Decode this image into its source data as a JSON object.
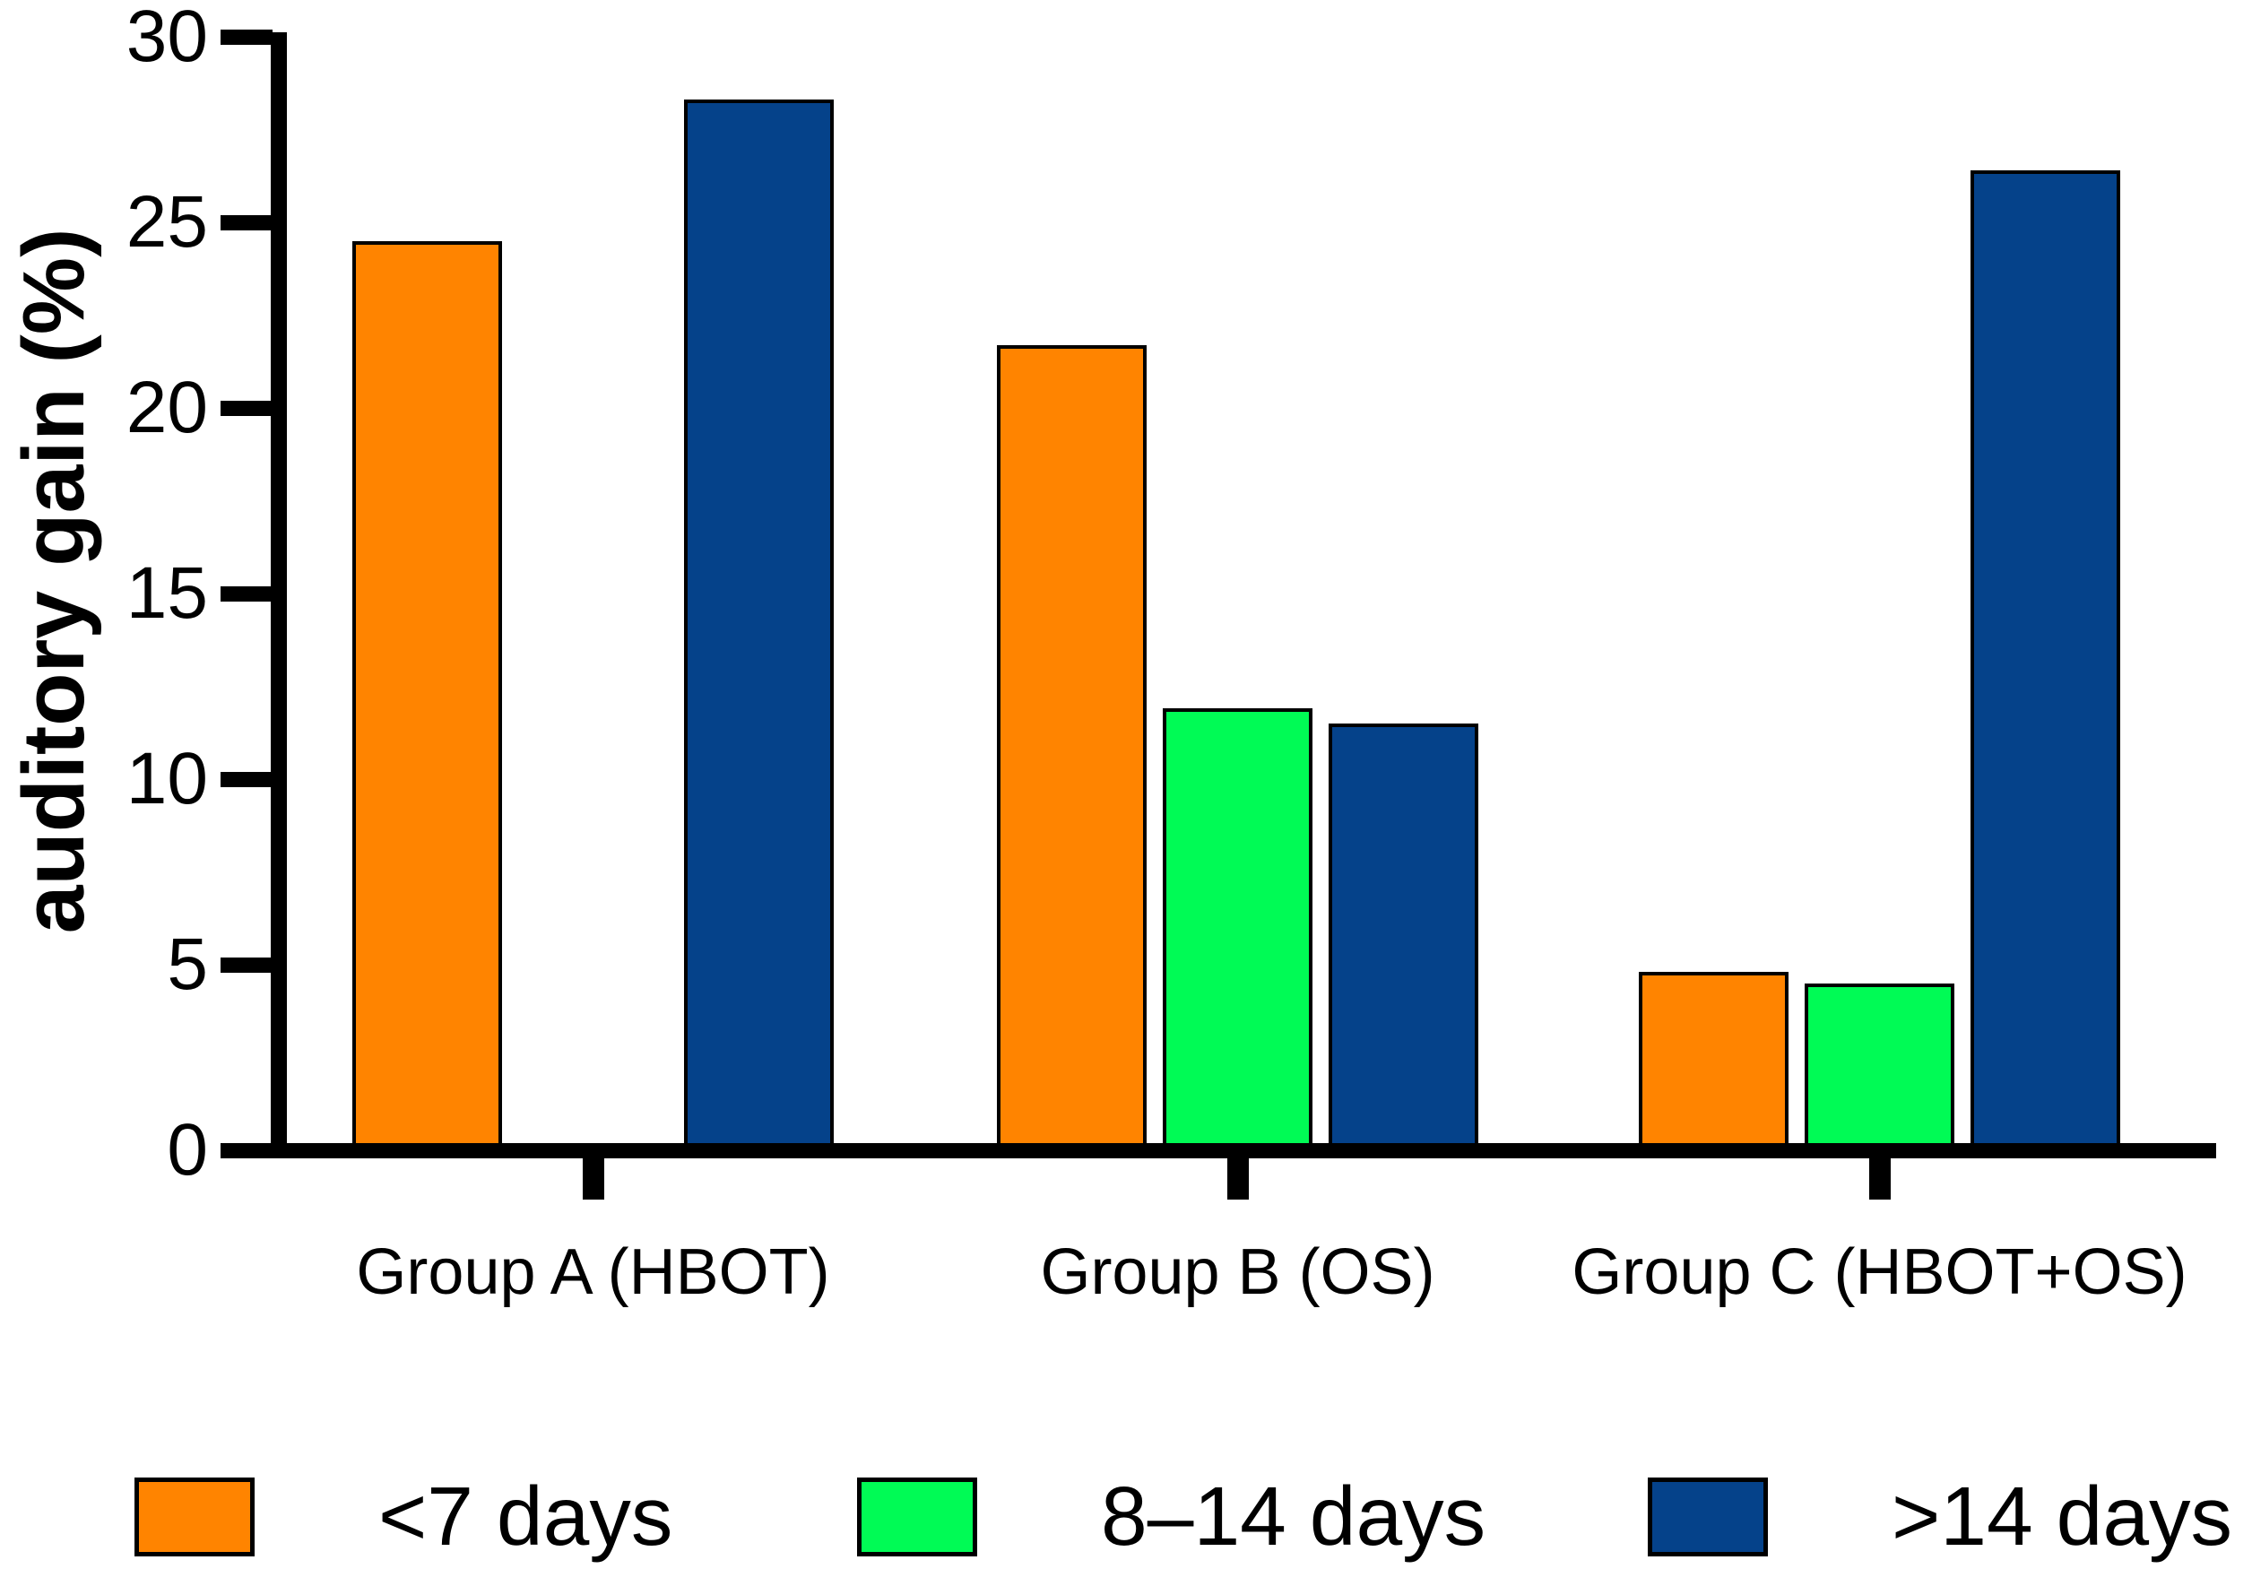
{
  "chart_data": {
    "type": "bar",
    "title": "",
    "xlabel": "",
    "ylabel": "auditory gain (%)",
    "ylim": [
      0,
      30
    ],
    "yticks": [
      0,
      5,
      10,
      15,
      20,
      25,
      30
    ],
    "grid": false,
    "legend_position": "bottom",
    "axis_color": "#000000",
    "background_color": "#ffffff",
    "categories": [
      "Group A (HBOT)",
      "Group B (OS)",
      "Group C (HBOT+OS)"
    ],
    "series": [
      {
        "name": "<7 days",
        "color": "#FF8400",
        "values": [
          24.5,
          21.7,
          4.8
        ]
      },
      {
        "name": "8–14 days",
        "color": "#00FB55",
        "values": [
          null,
          11.9,
          4.5
        ]
      },
      {
        "name": ">14 days",
        "color": "#05428A",
        "values": [
          28.3,
          11.5,
          26.4
        ]
      }
    ]
  }
}
